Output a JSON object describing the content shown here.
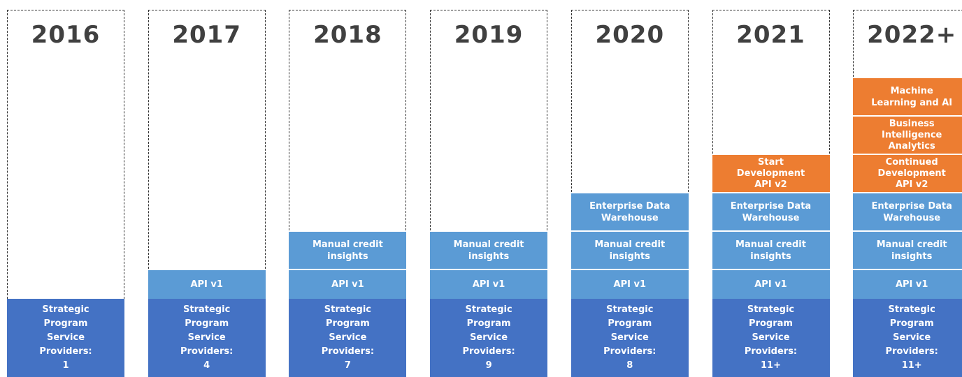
{
  "columns": [
    {
      "year": "2016",
      "blocks": [
        {
          "color": "#4472c4",
          "lines": [
            "Strategic",
            "Program",
            "Service",
            "Providers:",
            "1"
          ]
        }
      ]
    },
    {
      "year": "2017",
      "blocks": [
        {
          "color": "#4472c4",
          "lines": [
            "Strategic",
            "Program",
            "Service",
            "Providers:",
            "4"
          ]
        },
        {
          "color": "#5b9bd5",
          "lines": [
            "API v1"
          ]
        }
      ]
    },
    {
      "year": "2018",
      "blocks": [
        {
          "color": "#4472c4",
          "lines": [
            "Strategic",
            "Program",
            "Service",
            "Providers:",
            "7"
          ]
        },
        {
          "color": "#5b9bd5",
          "lines": [
            "API v1"
          ]
        },
        {
          "color": "#5b9bd5",
          "lines": [
            "Manual credit",
            "insights"
          ]
        }
      ]
    },
    {
      "year": "2019",
      "blocks": [
        {
          "color": "#4472c4",
          "lines": [
            "Strategic",
            "Program",
            "Service",
            "Providers:",
            "9"
          ]
        },
        {
          "color": "#5b9bd5",
          "lines": [
            "API v1"
          ]
        },
        {
          "color": "#5b9bd5",
          "lines": [
            "Manual credit",
            "insights"
          ]
        }
      ]
    },
    {
      "year": "2020",
      "blocks": [
        {
          "color": "#4472c4",
          "lines": [
            "Strategic",
            "Program",
            "Service",
            "Providers:",
            "8"
          ]
        },
        {
          "color": "#5b9bd5",
          "lines": [
            "API v1"
          ]
        },
        {
          "color": "#5b9bd5",
          "lines": [
            "Manual credit",
            "insights"
          ]
        },
        {
          "color": "#5b9bd5",
          "lines": [
            "Enterprise Data",
            "Warehouse"
          ]
        }
      ]
    },
    {
      "year": "2021",
      "blocks": [
        {
          "color": "#4472c4",
          "lines": [
            "Strategic",
            "Program",
            "Service",
            "Providers:",
            "11+"
          ]
        },
        {
          "color": "#5b9bd5",
          "lines": [
            "API v1"
          ]
        },
        {
          "color": "#5b9bd5",
          "lines": [
            "Manual credit",
            "insights"
          ]
        },
        {
          "color": "#5b9bd5",
          "lines": [
            "Enterprise Data",
            "Warehouse"
          ]
        },
        {
          "color": "#ed7d31",
          "lines": [
            "Start",
            "Development",
            "API v2"
          ]
        }
      ]
    },
    {
      "year": "2022+",
      "blocks": [
        {
          "color": "#4472c4",
          "lines": [
            "Strategic",
            "Program",
            "Service",
            "Providers:",
            "11+"
          ]
        },
        {
          "color": "#5b9bd5",
          "lines": [
            "API v1"
          ]
        },
        {
          "color": "#5b9bd5",
          "lines": [
            "Manual credit",
            "insights"
          ]
        },
        {
          "color": "#5b9bd5",
          "lines": [
            "Enterprise Data",
            "Warehouse"
          ]
        },
        {
          "color": "#ed7d31",
          "lines": [
            "Continued",
            "Development",
            "API v2"
          ]
        },
        {
          "color": "#ed7d31",
          "lines": [
            "Business",
            "Intelligence",
            "Analytics"
          ]
        },
        {
          "color": "#ed7d31",
          "lines": [
            "Machine",
            "Learning and AI"
          ]
        }
      ]
    }
  ]
}
